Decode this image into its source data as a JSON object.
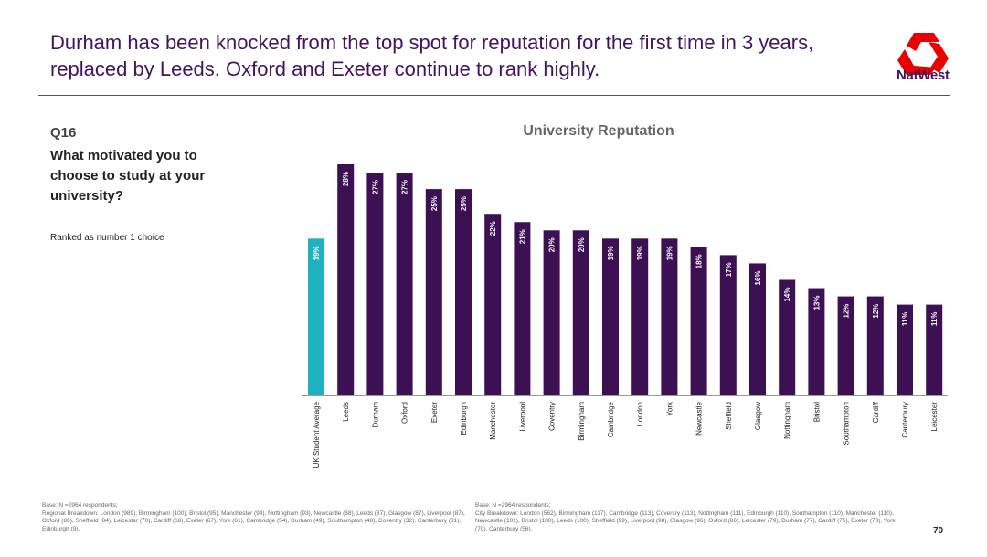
{
  "header": {
    "title": "Durham has been knocked from the top spot for reputation for the first time in 3 years, replaced by Leeds. Oxford and Exeter continue to rank highly.",
    "logo_text": "NatWest"
  },
  "left": {
    "q": "Q16",
    "question": "What motivated you to choose to study at your university?",
    "subtitle": "Ranked as number 1 choice"
  },
  "footnotes": {
    "left_base": "Base: N =2964 respondents;",
    "left_text": "Regional Breakdown: London (989), Birmingham (100), Bristol (95), Manchester (94), Nottingham (93), Newcastle (88), Leeds (87), Glasgow (87), Liverpool (87), Oxford (86), Sheffield (84), Leicester (70), Cardiff (68), Exeter (67), York (61), Cambridge (54), Durham (49), Southampton (48), Coventry (32), Canterbury (31), Edinburgh (9).",
    "right_base": "Base: N =2964 respondents;",
    "right_text": "City Breakdown: London (562), Birmingham (117), Cambridge (113), Coventry (113), Nottingham (111), Edinburgh (110), Southampton (110), Manchester (110), Newcastle (101), Bristol (100), Leeds (100), Sheffield (99), Liverpool (98), Glasgow (96), Oxford (86), Leicester (79), Durham (77), Cardiff (75), Exeter (73), York (70), Canterbury (56)."
  },
  "page_number": "70",
  "colors": {
    "highlight": "#1eb1bf",
    "bar": "#3c1053",
    "title": "#42145f",
    "logo": "#e90000"
  },
  "chart_data": {
    "type": "bar",
    "title": "University Reputation",
    "categories": [
      "UK Student Average",
      "Leeds",
      "Durham",
      "Oxford",
      "Exeter",
      "Edinburgh",
      "Manchester",
      "Liverpool",
      "Coventry",
      "Birmingham",
      "Cambridge",
      "London",
      "York",
      "Newcastle",
      "Sheffield",
      "Glasgow",
      "Nottingham",
      "Bristol",
      "Southampton",
      "Cardiff",
      "Canterbury",
      "Leicester"
    ],
    "values": [
      19,
      28,
      27,
      27,
      25,
      25,
      22,
      21,
      20,
      20,
      19,
      19,
      19,
      18,
      17,
      16,
      14,
      13,
      12,
      12,
      11,
      11
    ],
    "value_labels": [
      "19%",
      "28%",
      "27%",
      "27%",
      "25%",
      "25%",
      "22%",
      "21%",
      "20%",
      "20%",
      "19%",
      "19%",
      "19%",
      "18%",
      "17%",
      "16%",
      "14%",
      "13%",
      "12%",
      "12%",
      "11%",
      "11%"
    ],
    "highlight_index": 0,
    "ylim": [
      0,
      28
    ],
    "grid": false
  }
}
